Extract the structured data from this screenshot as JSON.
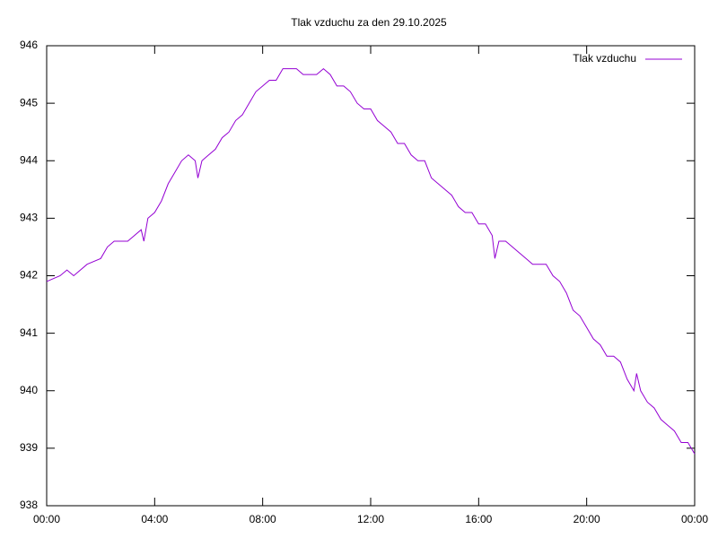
{
  "chart_data": {
    "type": "line",
    "title": "Tlak vzduchu za den 29.10.2025",
    "x": [
      0,
      0.5,
      0.75,
      1,
      1.5,
      2,
      2.25,
      2.5,
      3,
      3.25,
      3.5,
      3.6,
      3.75,
      4,
      4.25,
      4.5,
      4.75,
      5,
      5.25,
      5.5,
      5.6,
      5.75,
      6,
      6.25,
      6.5,
      6.75,
      7,
      7.25,
      7.5,
      7.75,
      8,
      8.25,
      8.5,
      8.75,
      9,
      9.25,
      9.5,
      10,
      10.25,
      10.5,
      10.75,
      11,
      11.25,
      11.5,
      11.75,
      12,
      12.25,
      12.5,
      12.75,
      13,
      13.25,
      13.5,
      13.75,
      14,
      14.25,
      14.5,
      14.75,
      15,
      15.25,
      15.5,
      15.75,
      16,
      16.25,
      16.5,
      16.6,
      16.75,
      17,
      17.25,
      17.5,
      17.75,
      18,
      18.25,
      18.5,
      18.75,
      19,
      19.25,
      19.5,
      19.75,
      20,
      20.25,
      20.5,
      20.75,
      21,
      21.25,
      21.5,
      21.75,
      21.85,
      22,
      22.25,
      22.5,
      22.75,
      23,
      23.25,
      23.5,
      23.75,
      24
    ],
    "series": [
      {
        "name": "Tlak vzduchu",
        "color": "#9400d3",
        "values": [
          941.9,
          942.0,
          942.1,
          942.0,
          942.2,
          942.3,
          942.5,
          942.6,
          942.6,
          942.7,
          942.8,
          942.6,
          943.0,
          943.1,
          943.3,
          943.6,
          943.8,
          944.0,
          944.1,
          944.0,
          943.7,
          944.0,
          944.1,
          944.2,
          944.4,
          944.5,
          944.7,
          944.8,
          945.0,
          945.2,
          945.3,
          945.4,
          945.4,
          945.6,
          945.6,
          945.6,
          945.5,
          945.5,
          945.6,
          945.5,
          945.3,
          945.3,
          945.2,
          945.0,
          944.9,
          944.9,
          944.7,
          944.6,
          944.5,
          944.3,
          944.3,
          944.1,
          944.0,
          944.0,
          943.7,
          943.6,
          943.5,
          943.4,
          943.2,
          943.1,
          943.1,
          942.9,
          942.9,
          942.7,
          942.3,
          942.6,
          942.6,
          942.5,
          942.4,
          942.3,
          942.2,
          942.2,
          942.2,
          942.0,
          941.9,
          941.7,
          941.4,
          941.3,
          941.1,
          940.9,
          940.8,
          940.6,
          940.6,
          940.5,
          940.2,
          940.0,
          940.3,
          940.0,
          939.8,
          939.7,
          939.5,
          939.4,
          939.3,
          939.1,
          939.1,
          938.9
        ]
      }
    ],
    "xlim": [
      0,
      24
    ],
    "xticks": [
      {
        "value": 0,
        "label": "00:00"
      },
      {
        "value": 4,
        "label": "04:00"
      },
      {
        "value": 8,
        "label": "08:00"
      },
      {
        "value": 12,
        "label": "12:00"
      },
      {
        "value": 16,
        "label": "16:00"
      },
      {
        "value": 20,
        "label": "20:00"
      },
      {
        "value": 24,
        "label": "00:00"
      }
    ],
    "ylim": [
      938,
      946
    ],
    "yticks": [
      938,
      939,
      940,
      941,
      942,
      943,
      944,
      945,
      946
    ],
    "grid": false,
    "legend": "top-right"
  }
}
